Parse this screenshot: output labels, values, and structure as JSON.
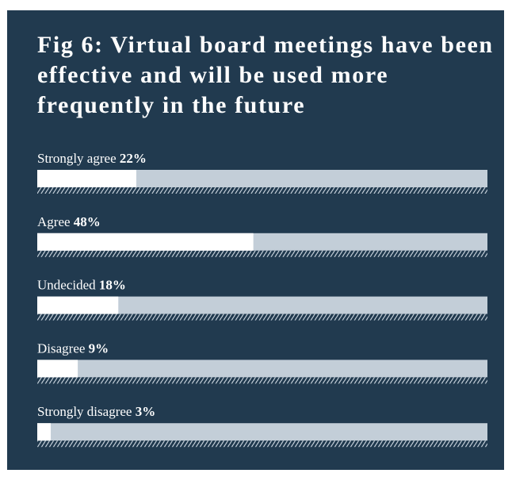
{
  "chart_data": {
    "type": "bar",
    "title": "Fig 6: Virtual board meetings have been effective and will be used more frequently in the future",
    "categories": [
      "Strongly agree",
      "Agree",
      "Undecided",
      "Disagree",
      "Strongly disagree"
    ],
    "values": [
      22,
      48,
      18,
      9,
      3
    ],
    "value_labels": [
      "22%",
      "48%",
      "18%",
      "9%",
      "3%"
    ],
    "xlim": [
      0,
      100
    ],
    "color": "#ffffff",
    "track_color": "#c3ced8",
    "background": "#213a4f"
  }
}
